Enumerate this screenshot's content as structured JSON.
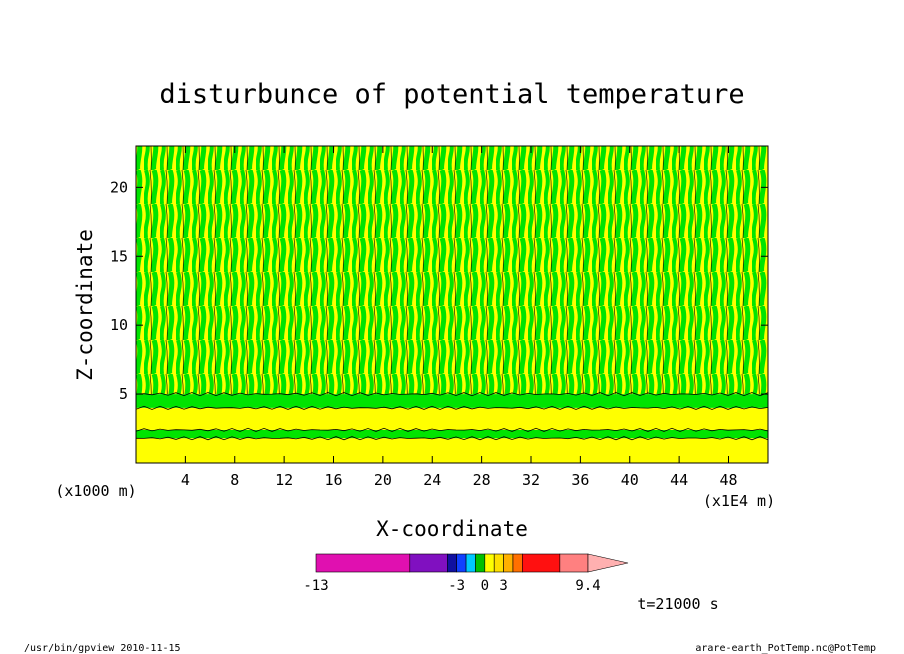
{
  "page": {
    "footer_left": "/usr/bin/gpview  2010-11-15",
    "footer_right": "arare-earth_PotTemp.nc@PotTemp",
    "time_label": "t=21000 s"
  },
  "chart_data": {
    "type": "heatmap",
    "title": "disturbunce of potential temperature",
    "xlabel": "X-coordinate",
    "ylabel": "Z-coordinate",
    "x_unit_label": "(x1E4 m)",
    "y_unit_label": "(x1000 m)",
    "xlim": [
      0,
      51.2
    ],
    "ylim": [
      0,
      23
    ],
    "x_ticks": [
      4,
      8,
      12,
      16,
      20,
      24,
      28,
      32,
      36,
      40,
      44,
      48
    ],
    "y_ticks": [
      5,
      10,
      15,
      20
    ],
    "grid": false,
    "colors": {
      "yellow": "#ffff00",
      "green": "#00e400",
      "contour": "#000000"
    },
    "layers": [
      {
        "z_from": 0,
        "z_to": 1.8,
        "value_class": "yellow"
      },
      {
        "z_from": 1.8,
        "z_to": 2.4,
        "value_class": "green"
      },
      {
        "z_from": 2.4,
        "z_to": 4.0,
        "value_class": "yellow"
      },
      {
        "z_from": 4.0,
        "z_to": 5.0,
        "value_class": "green"
      },
      {
        "z_from": 5.0,
        "z_to": 23,
        "value_class": "mixed vertical plumes"
      }
    ],
    "colorbar": {
      "tick_labels": [
        "-13",
        "-3",
        "0",
        "3",
        "9.4"
      ],
      "segments": [
        {
          "color": "#e010b0",
          "units": 5
        },
        {
          "color": "#8010c0",
          "units": 2
        },
        {
          "color": "#1010a0",
          "units": 0.5
        },
        {
          "color": "#1040ff",
          "units": 0.5
        },
        {
          "color": "#00c8ff",
          "units": 0.5
        },
        {
          "color": "#00c000",
          "units": 0.5
        },
        {
          "color": "#ffff00",
          "units": 0.5
        },
        {
          "color": "#ffe000",
          "units": 0.5
        },
        {
          "color": "#ffb000",
          "units": 0.5
        },
        {
          "color": "#ff7000",
          "units": 0.5
        },
        {
          "color": "#ff1010",
          "units": 2
        },
        {
          "color": "#ff8080",
          "units": 1.5
        }
      ],
      "arrow_color": "#ffb0b0"
    }
  }
}
